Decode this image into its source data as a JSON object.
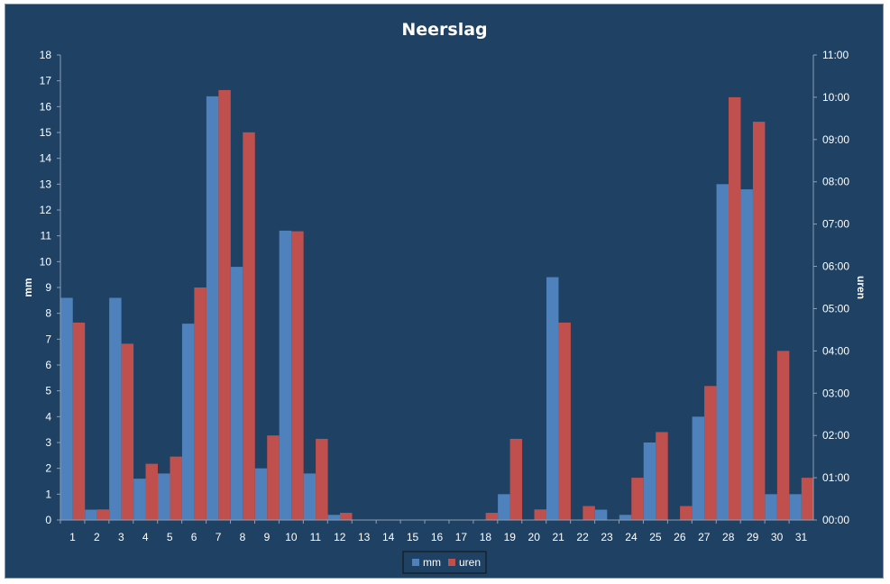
{
  "chart_data": {
    "type": "bar",
    "title": "Neerslag",
    "xlabel": "",
    "ylabel": "mm",
    "y2label": "uren",
    "categories": [
      "1",
      "2",
      "3",
      "4",
      "5",
      "6",
      "7",
      "8",
      "9",
      "10",
      "11",
      "12",
      "13",
      "14",
      "15",
      "16",
      "17",
      "18",
      "19",
      "20",
      "21",
      "22",
      "23",
      "24",
      "25",
      "26",
      "27",
      "28",
      "29",
      "30",
      "31"
    ],
    "ylim": [
      0,
      18
    ],
    "y_ticks": [
      "0",
      "1",
      "2",
      "3",
      "4",
      "5",
      "6",
      "7",
      "8",
      "9",
      "10",
      "11",
      "12",
      "13",
      "14",
      "15",
      "16",
      "17",
      "18"
    ],
    "y2lim_hours": [
      0,
      11
    ],
    "y2_ticks": [
      "00:00",
      "01:00",
      "02:00",
      "03:00",
      "04:00",
      "05:00",
      "06:00",
      "07:00",
      "08:00",
      "09:00",
      "10:00",
      "11:00"
    ],
    "series": [
      {
        "name": "mm",
        "axis": "left",
        "color": "#4f81bd",
        "values": [
          8.6,
          0.4,
          8.6,
          1.6,
          1.8,
          7.6,
          16.4,
          9.8,
          2.0,
          11.2,
          1.8,
          0.2,
          0,
          0,
          0,
          0,
          0,
          0,
          1.0,
          0,
          9.4,
          0,
          0.4,
          0.2,
          3.0,
          0,
          4.0,
          13.0,
          12.8,
          1.0,
          1.0
        ]
      },
      {
        "name": "uren",
        "axis": "right",
        "color": "#c0504d",
        "values": [
          4.67,
          0.25,
          4.17,
          1.33,
          1.5,
          5.5,
          10.17,
          9.17,
          2.0,
          6.83,
          1.92,
          0.17,
          0,
          0,
          0,
          0,
          0,
          0.17,
          1.92,
          0.25,
          4.67,
          0.33,
          0,
          1.0,
          2.08,
          0.33,
          3.17,
          10.0,
          9.42,
          4.0,
          1.0
        ]
      }
    ],
    "legend": {
      "position": "bottom",
      "entries": [
        "mm",
        "uren"
      ]
    },
    "grid": false
  }
}
